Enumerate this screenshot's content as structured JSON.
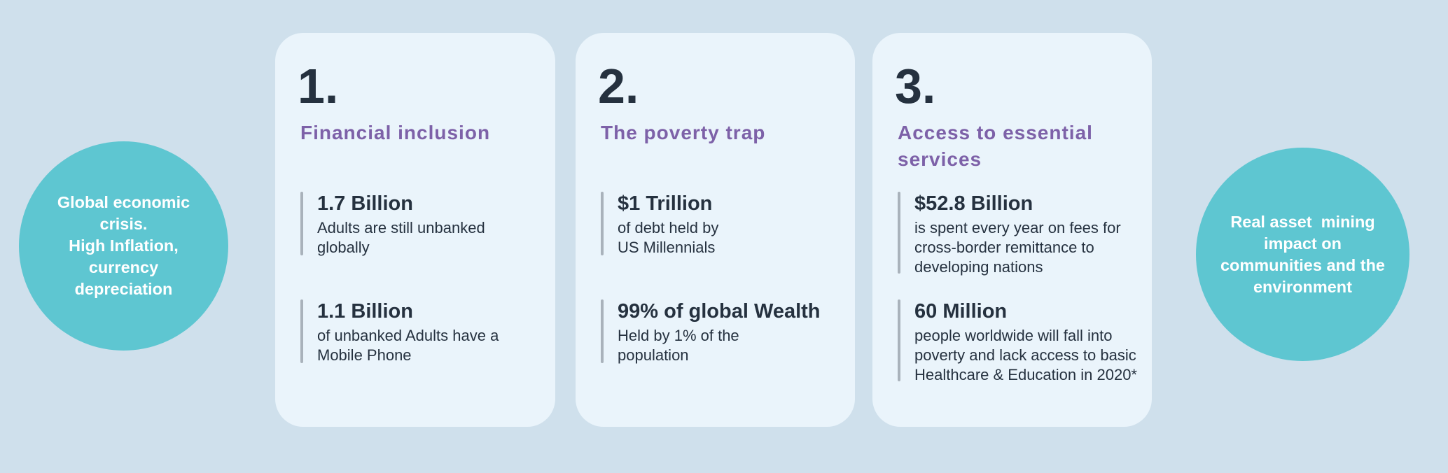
{
  "colors": {
    "page_background": "#cfe0ec",
    "card_background": "#eaf4fb",
    "circle_teal": "#5ec6d1",
    "heading_purple": "#7d61a8",
    "text_dark": "#25313f",
    "stat_bar_gray": "#a9b2bb",
    "circle_text_white": "#ffffff"
  },
  "left_circle": {
    "text": "Global economic\ncrisis.\nHigh Inflation,\ncurrency\ndepreciation"
  },
  "right_circle": {
    "text": "Real asset  mining\nimpact on\ncommunities and the\nenvironment"
  },
  "cards": [
    {
      "number": "1.",
      "title": "Financial inclusion",
      "stats": [
        {
          "value": "1.7 Billion",
          "description": "Adults are still unbanked\nglobally"
        },
        {
          "value": "1.1 Billion",
          "description": "of unbanked Adults have a\nMobile Phone"
        }
      ]
    },
    {
      "number": "2.",
      "title": "The poverty trap",
      "stats": [
        {
          "value": "$1 Trillion",
          "description": "of debt held by\nUS Millennials"
        },
        {
          "value": "99% of global Wealth",
          "description": "Held by 1% of the\npopulation"
        }
      ]
    },
    {
      "number": "3.",
      "title": "Access to essential\nservices",
      "stats": [
        {
          "value": "$52.8 Billion",
          "description": "is spent every year on fees for\ncross-border remittance to\ndeveloping nations"
        },
        {
          "value": "60 Million",
          "description": "people worldwide will fall into\npoverty and lack access to basic\nHealthcare & Education in 2020*"
        }
      ]
    }
  ]
}
